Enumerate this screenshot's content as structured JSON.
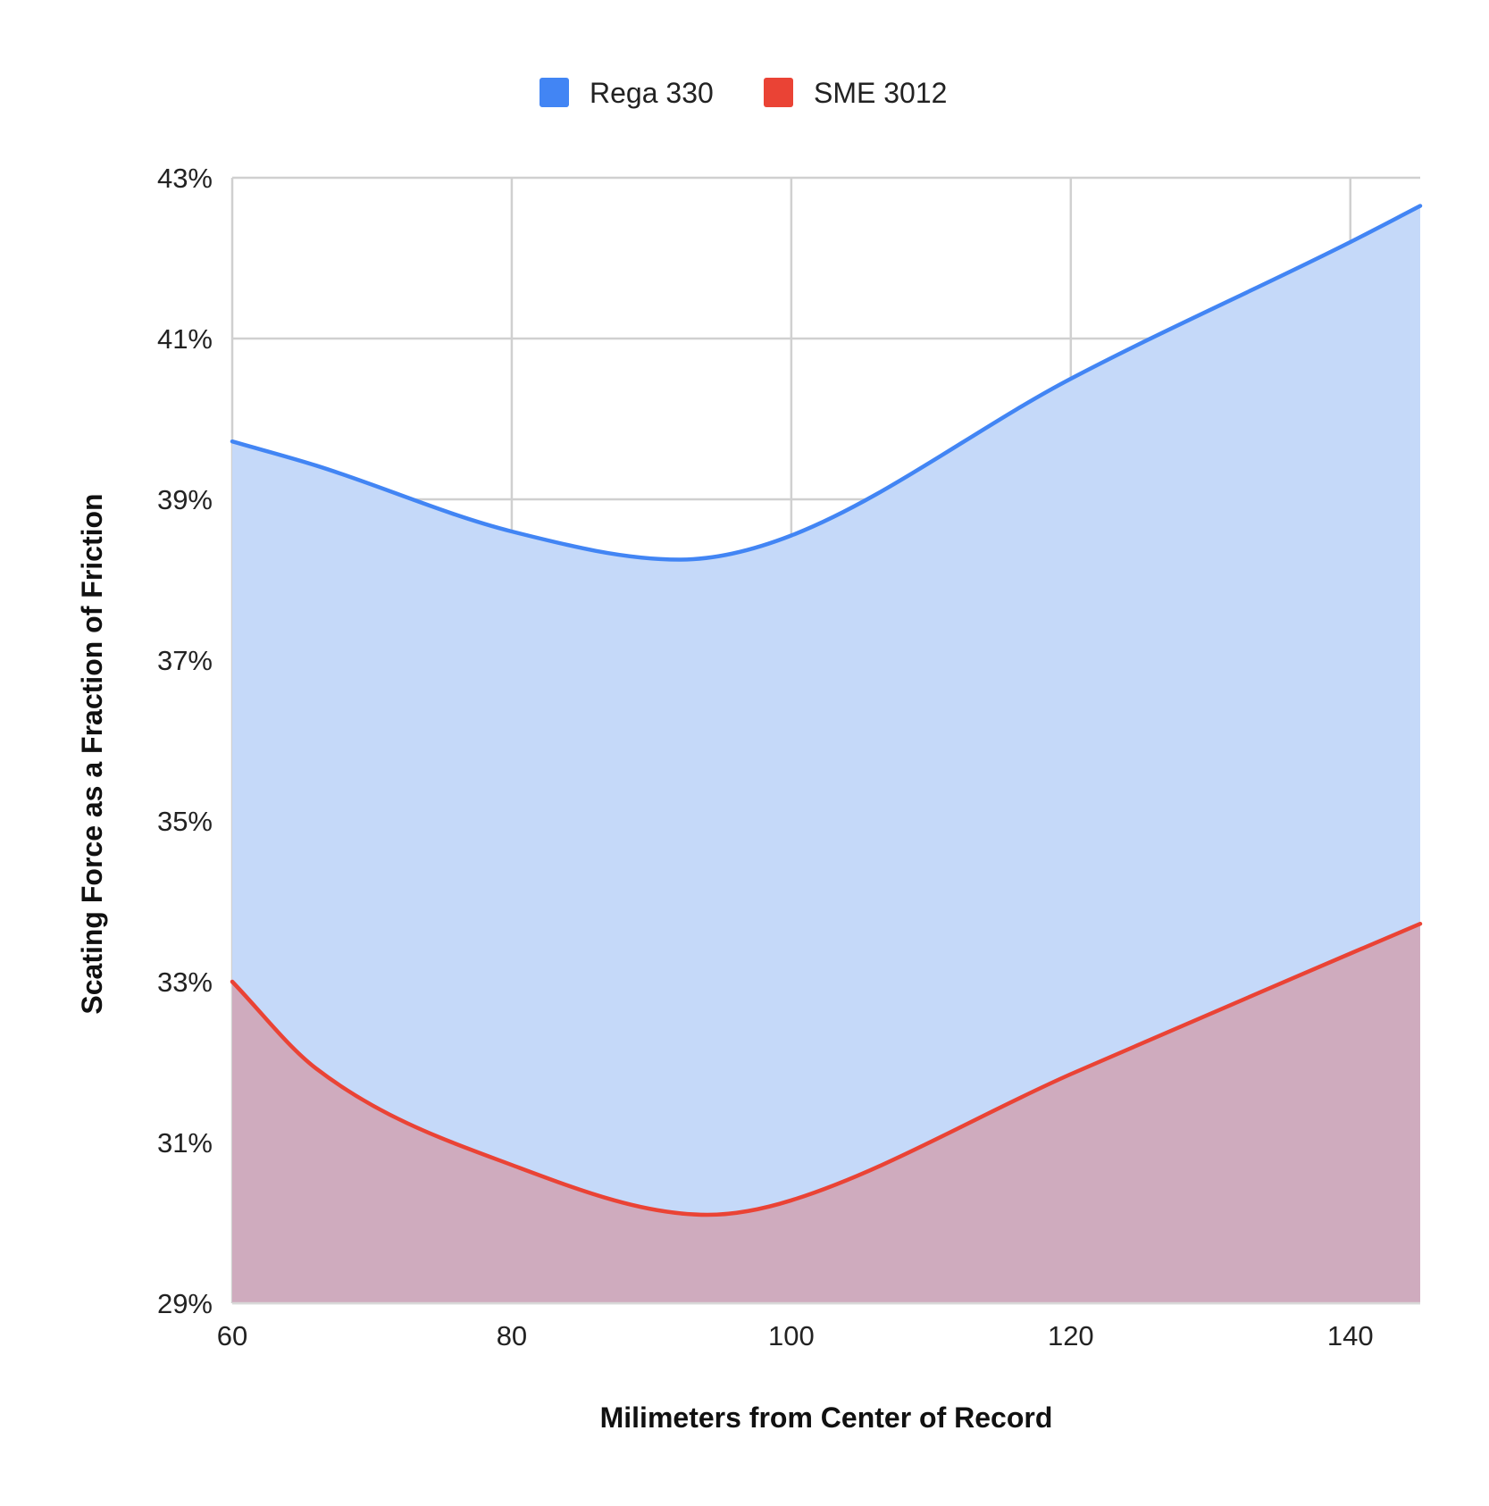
{
  "chart_data": {
    "type": "area",
    "title": "",
    "xlabel": "Milimeters from Center of Record",
    "ylabel": "Scating Force as a Fraction of Friction",
    "xlim": [
      60,
      145
    ],
    "ylim": [
      29,
      43
    ],
    "x_ticks": [
      60,
      80,
      100,
      120,
      140
    ],
    "x_tick_labels": [
      "60",
      "80",
      "100",
      "120",
      "140"
    ],
    "y_ticks": [
      29,
      31,
      33,
      35,
      37,
      39,
      41,
      43
    ],
    "y_tick_labels": [
      "29%",
      "31%",
      "33%",
      "35%",
      "37%",
      "39%",
      "41%",
      "43%"
    ],
    "grid": true,
    "legend_position": "top-center",
    "series": [
      {
        "name": "Rega 330",
        "color": "#4285f4",
        "fill_color": "#c5d9f9",
        "x": [
          60,
          66,
          80,
          92,
          100,
          120,
          140,
          145
        ],
        "values": [
          39.72,
          39.42,
          38.6,
          38.25,
          38.55,
          40.5,
          42.2,
          42.65
        ]
      },
      {
        "name": "SME 3012",
        "color": "#ea4335",
        "fill_color": "#cfabbe",
        "x": [
          60,
          66,
          80,
          94,
          100,
          120,
          140,
          145
        ],
        "values": [
          33.0,
          31.92,
          30.72,
          30.1,
          30.28,
          31.85,
          33.35,
          33.72
        ]
      }
    ]
  }
}
